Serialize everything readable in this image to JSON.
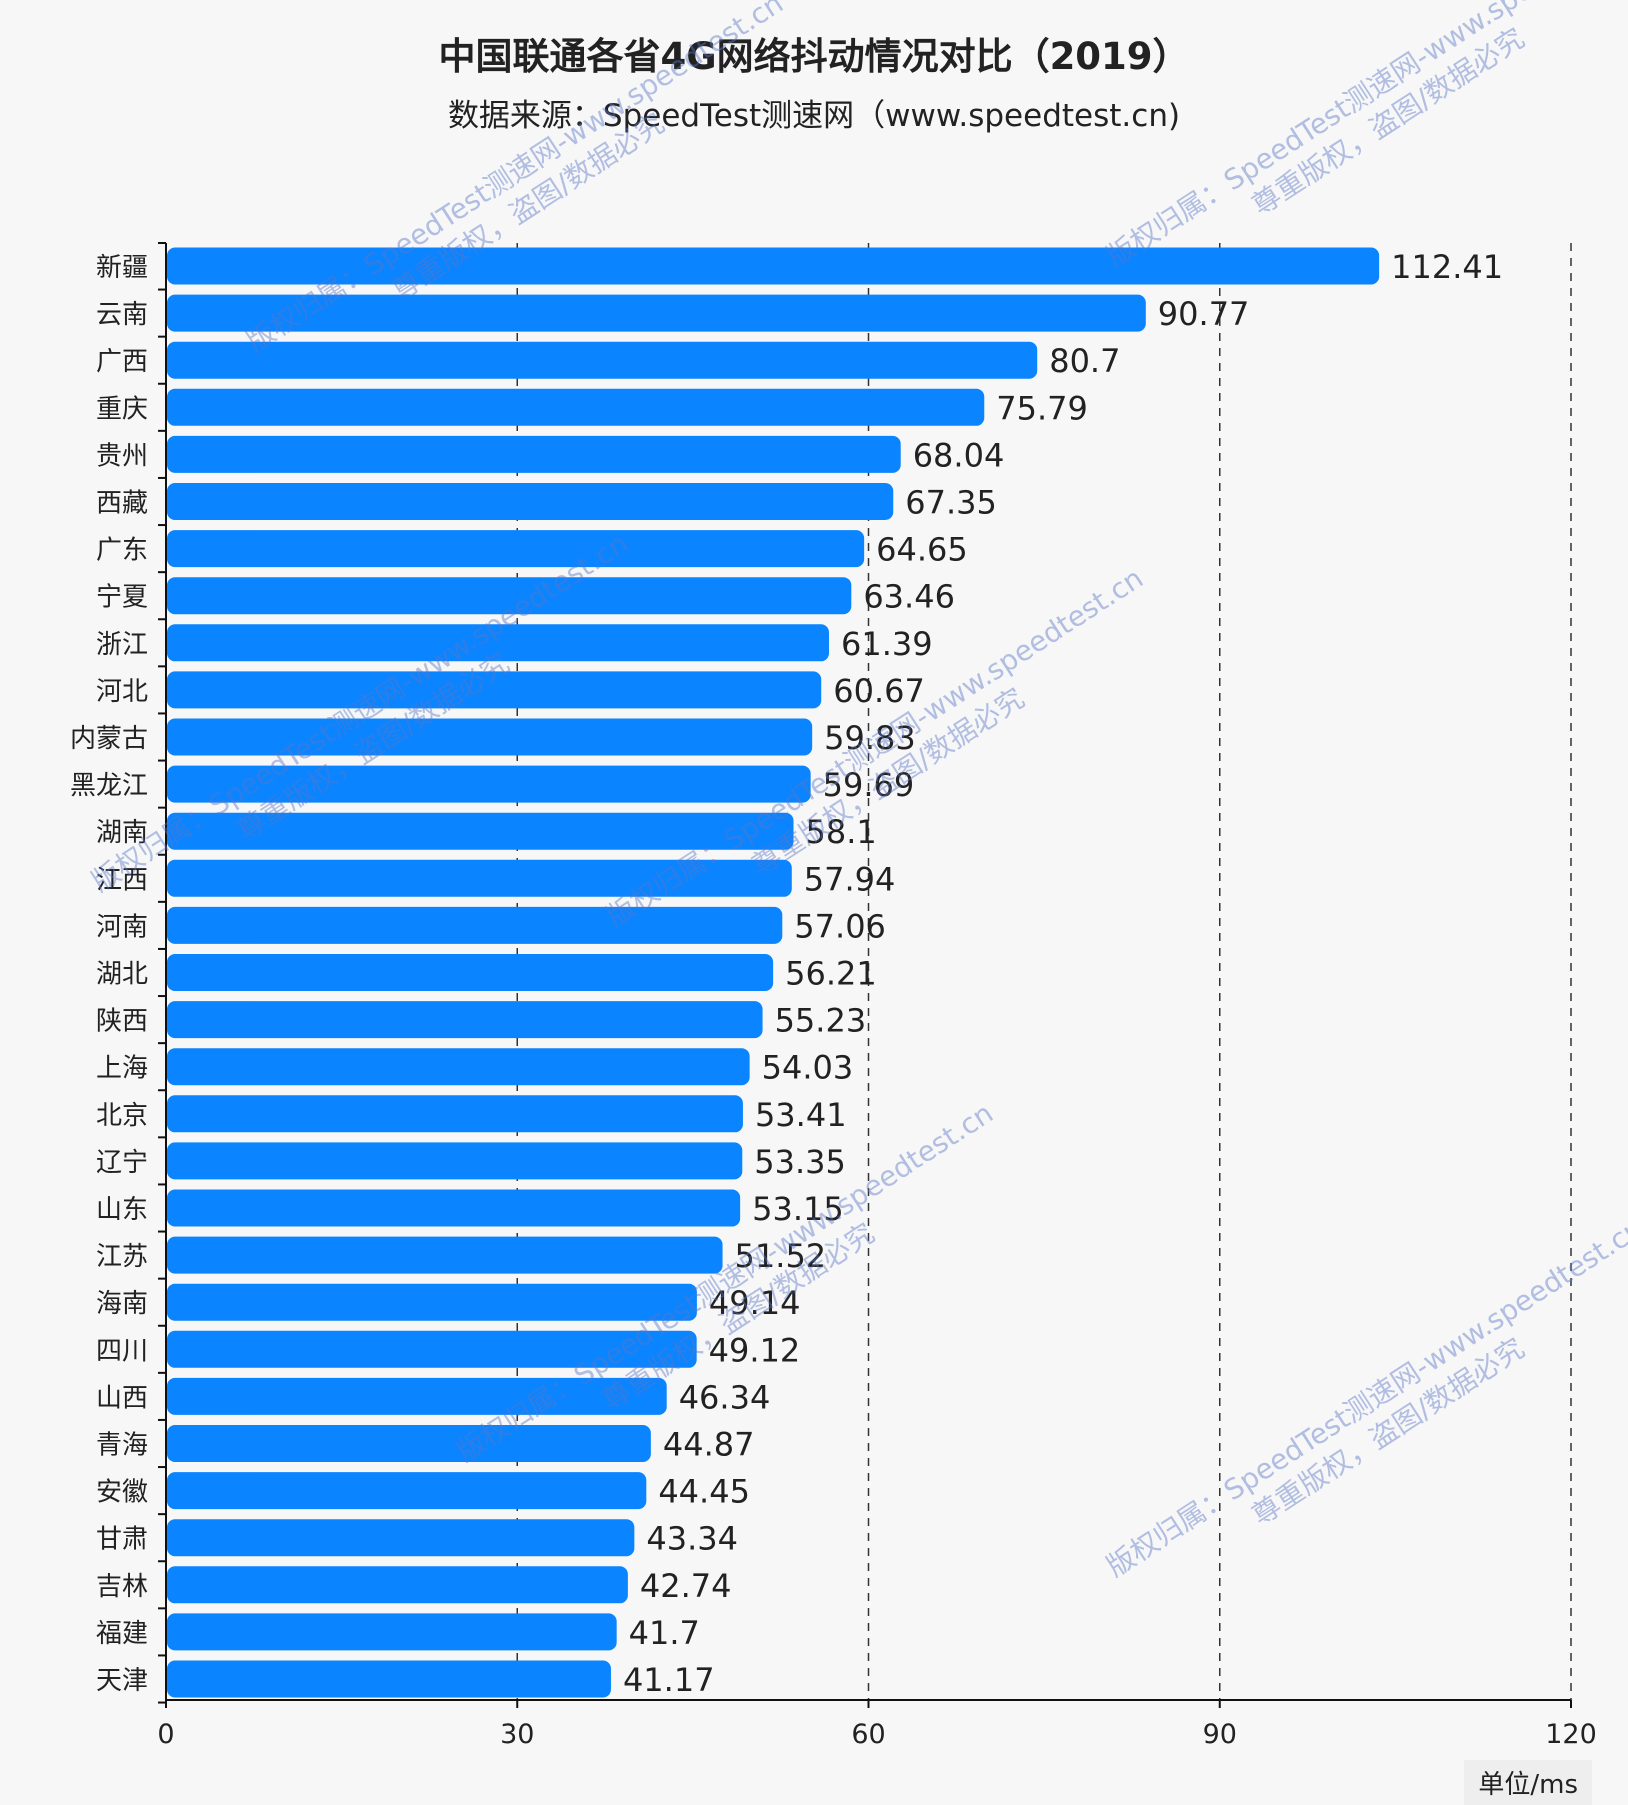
{
  "chart_data": {
    "type": "bar",
    "orientation": "horizontal",
    "title": "中国联通各省4G网络抖动情况对比（2019）",
    "subtitle": "数据来源：SpeedTest测速网（www.speedtest.cn)",
    "categories": [
      "新疆",
      "云南",
      "广西",
      "重庆",
      "贵州",
      "西藏",
      "广东",
      "宁夏",
      "浙江",
      "河北",
      "内蒙古",
      "黑龙江",
      "湖南",
      "江西",
      "河南",
      "湖北",
      "陕西",
      "上海",
      "北京",
      "辽宁",
      "山东",
      "江苏",
      "海南",
      "四川",
      "山西",
      "青海",
      "安徽",
      "甘肃",
      "吉林",
      "福建",
      "天津"
    ],
    "values": [
      112.41,
      90.77,
      80.7,
      75.79,
      68.04,
      67.35,
      64.65,
      63.46,
      61.39,
      60.67,
      59.83,
      59.69,
      58.1,
      57.94,
      57.06,
      56.21,
      55.23,
      54.03,
      53.41,
      53.35,
      53.15,
      51.52,
      49.14,
      49.12,
      46.34,
      44.87,
      44.45,
      43.34,
      42.74,
      41.7,
      41.17
    ],
    "xlim": [
      0,
      120
    ],
    "xticks": [
      "0",
      "30",
      "60",
      "90",
      "120"
    ],
    "unit_label": "单位/ms",
    "grid": "vertical dashed",
    "bar_color": "#0a84ff"
  },
  "watermark": {
    "line1": "版权归属：SpeedTest测速网-www.speedtest.cn",
    "line2": "尊重版权，盗图/数据必究"
  }
}
